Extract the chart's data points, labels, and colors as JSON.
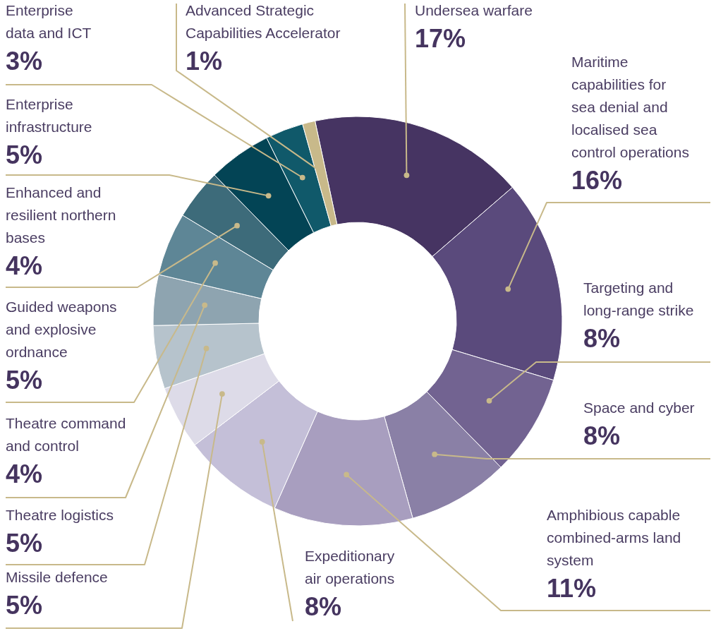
{
  "chart_data": {
    "type": "donut",
    "categories": [
      "Undersea warfare",
      "Maritime capabilities for sea denial and localised sea control operations",
      "Targeting and long-range strike",
      "Space and cyber",
      "Amphibious capable combined-arms land system",
      "Expeditionary air operations",
      "Missile defence",
      "Theatre logistics",
      "Theatre command and control",
      "Guided weapons and explosive ordnance",
      "Enhanced and resilient northern bases",
      "Enterprise infrastructure",
      "Enterprise data and ICT",
      "Advanced Strategic Capabilities Accelerator"
    ],
    "values": [
      17,
      16,
      8,
      8,
      11,
      8,
      5,
      5,
      4,
      5,
      4,
      5,
      3,
      1
    ],
    "colors": [
      "#463462",
      "#5a4a7c",
      "#726391",
      "#8a80a6",
      "#a89ebf",
      "#c4bfd8",
      "#dddbe8",
      "#b6c3cc",
      "#8ea4b0",
      "#5e8696",
      "#3d6b7a",
      "#034455",
      "#10596a",
      "#c8b98a"
    ],
    "value_labels": [
      "17%",
      "16%",
      "8%",
      "8%",
      "11%",
      "8%",
      "5%",
      "5%",
      "4%",
      "5%",
      "4%",
      "5%",
      "3%",
      "1%"
    ]
  }
}
